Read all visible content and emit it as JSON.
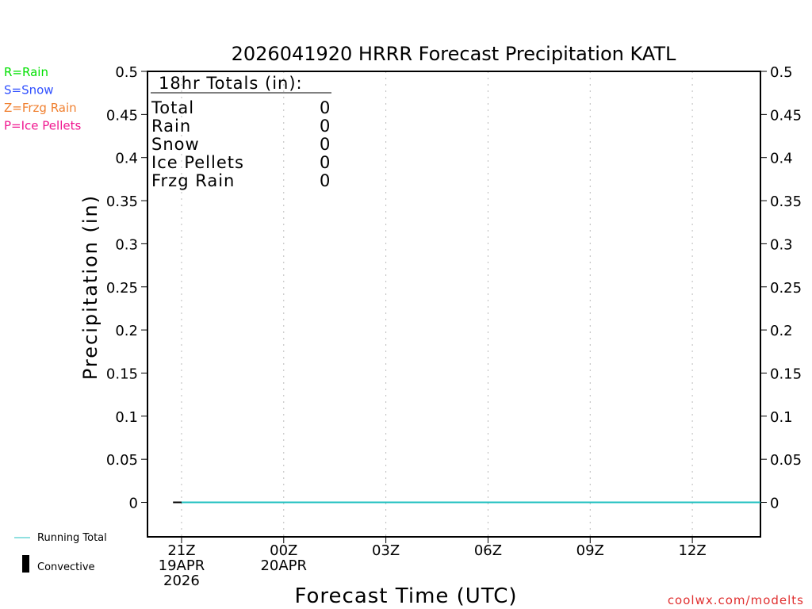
{
  "chart_data": {
    "type": "line",
    "title": "2026041920 HRRR Forecast Precipitation KATL",
    "xlabel": "Forecast Time (UTC)",
    "ylabel": "Precipitation (in)",
    "ylim": [
      -0.04,
      0.5
    ],
    "xlim_hours_from_20Z": [
      0,
      18
    ],
    "yticks": [
      "0",
      "0.05",
      "0.1",
      "0.15",
      "0.2",
      "0.25",
      "0.3",
      "0.35",
      "0.4",
      "0.45",
      "0.5"
    ],
    "ytick_values": [
      0,
      0.05,
      0.1,
      0.15,
      0.2,
      0.25,
      0.3,
      0.35,
      0.4,
      0.45,
      0.5
    ],
    "xticks": [
      {
        "h": 1,
        "lines": [
          "21Z",
          "19APR",
          "2026"
        ]
      },
      {
        "h": 4,
        "lines": [
          "00Z",
          "20APR"
        ]
      },
      {
        "h": 7,
        "lines": [
          "03Z"
        ]
      },
      {
        "h": 10,
        "lines": [
          "06Z"
        ]
      },
      {
        "h": 13,
        "lines": [
          "09Z"
        ]
      },
      {
        "h": 16,
        "lines": [
          "12Z"
        ]
      }
    ],
    "grid": "vertical dotted",
    "series": [
      {
        "name": "Total",
        "color": "#000000",
        "x": [
          0.75,
          18
        ],
        "y": [
          0,
          0
        ]
      },
      {
        "name": "Running Total",
        "color": "#20c0c0",
        "x": [
          1,
          18
        ],
        "y": [
          0,
          0
        ]
      }
    ],
    "totals": {
      "heading": "18hr Totals (in):",
      "rows": [
        [
          "Total",
          "0"
        ],
        [
          "Rain",
          "0"
        ],
        [
          "Snow",
          "0"
        ],
        [
          "Ice Pellets",
          "0"
        ],
        [
          "Frzg Rain",
          "0"
        ]
      ]
    },
    "type_legend": [
      {
        "label": "R=Rain",
        "color": "#00e000"
      },
      {
        "label": "S=Snow",
        "color": "#3050ff"
      },
      {
        "label": "Z=Frzg Rain",
        "color": "#f08030"
      },
      {
        "label": "P=Ice Pellets",
        "color": "#f01890"
      }
    ],
    "line_legend": {
      "running": "Running Total",
      "convective": "Convective"
    },
    "credit": "coolwx.com/modelts"
  }
}
